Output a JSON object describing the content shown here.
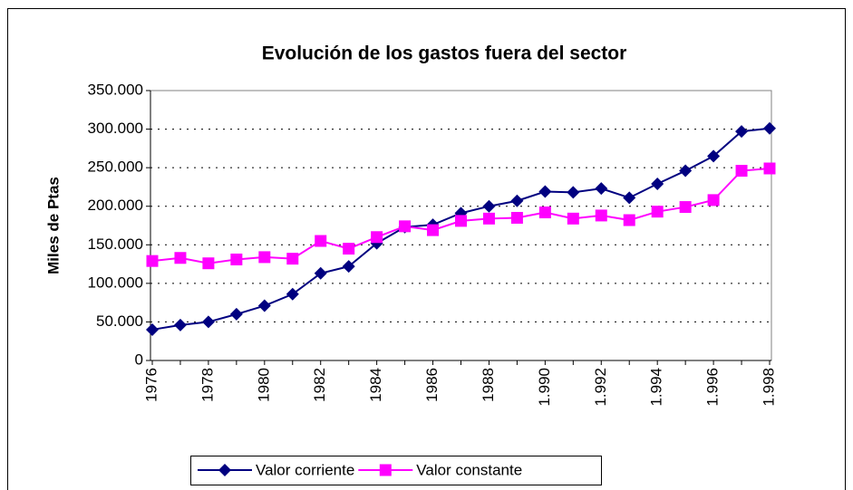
{
  "chart_data": {
    "type": "line",
    "title": "Evolución de los gastos fuera del sector",
    "y_label": "Miles de Ptas",
    "categories": [
      "1976",
      null,
      "1978",
      null,
      "1980",
      null,
      "1982",
      null,
      "1984",
      null,
      "1986",
      null,
      "1988",
      null,
      "1.990",
      null,
      "1.992",
      null,
      "1.994",
      null,
      "1.996",
      null,
      "1.998"
    ],
    "series": [
      {
        "name": "Valor corriente",
        "color": "#000080",
        "marker": "diamond",
        "values": [
          40000,
          46000,
          50000,
          60000,
          71000,
          86000,
          113000,
          122000,
          152000,
          173000,
          176000,
          191000,
          200000,
          207000,
          219000,
          218000,
          223000,
          211000,
          229000,
          246000,
          265000,
          297000,
          301000
        ]
      },
      {
        "name": "Valor constante",
        "color": "#ff00ff",
        "marker": "square",
        "values": [
          129000,
          133000,
          126000,
          131000,
          134000,
          132000,
          155000,
          145000,
          160000,
          174000,
          169000,
          181000,
          184000,
          185000,
          192000,
          184000,
          188000,
          182000,
          193000,
          199000,
          208000,
          246000,
          249000
        ]
      }
    ],
    "ylim": [
      0,
      350000
    ],
    "yticks": [
      0,
      {
        "value": 50000,
        "label": "50.000"
      },
      {
        "value": 100000,
        "label": "100.000"
      },
      {
        "value": 150000,
        "label": "150.000"
      },
      {
        "value": 200000,
        "label": "200.000"
      },
      {
        "value": 250000,
        "label": "250.000"
      },
      {
        "value": 300000,
        "label": "300.000"
      },
      {
        "value": 350000,
        "label": "350.000"
      }
    ],
    "grid": true,
    "legend": "bottom"
  }
}
